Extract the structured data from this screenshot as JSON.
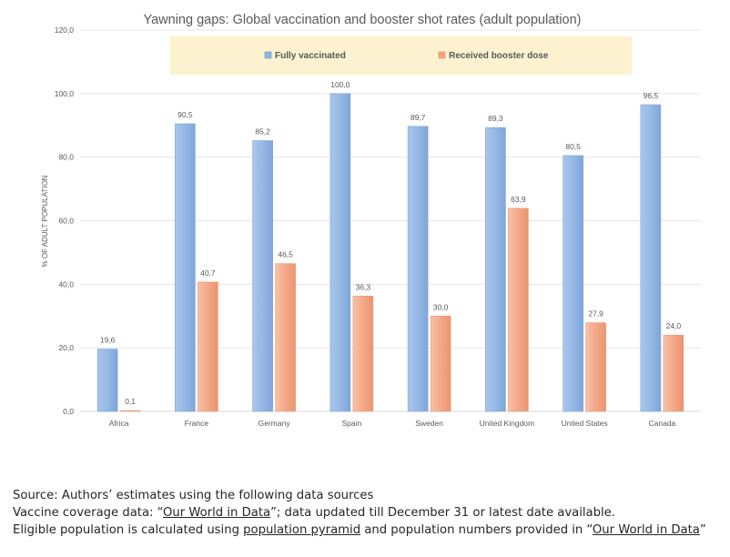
{
  "chart_data": {
    "type": "bar",
    "title": "Yawning gaps: Global vaccination and booster shot rates (adult population)",
    "xlabel": "",
    "ylabel": "% OF ADULT POPULATION",
    "ylim": [
      0,
      120
    ],
    "yticks": [
      0,
      20,
      40,
      60,
      80,
      100,
      120
    ],
    "ytick_labels": [
      "0,0",
      "20,0",
      "40,0",
      "60,0",
      "80,0",
      "100,0",
      "120,0"
    ],
    "grid": true,
    "legend_position": "top",
    "categories": [
      "Africa",
      "France",
      "Germany",
      "Spain",
      "Sweden",
      "United Kingdom",
      "United States",
      "Canada"
    ],
    "series": [
      {
        "name": "Fully vaccinated",
        "color": "#8EB4E3",
        "values": [
          19.6,
          90.5,
          85.2,
          100.0,
          89.7,
          89.3,
          80.5,
          96.5
        ],
        "labels": [
          "19,6",
          "90,5",
          "85,2",
          "100,0",
          "89,7",
          "89,3",
          "80,5",
          "96,5"
        ]
      },
      {
        "name": "Received booster dose",
        "color": "#F4A582",
        "values": [
          0.1,
          40.7,
          46.5,
          36.3,
          30.0,
          63.9,
          27.9,
          24.0
        ],
        "labels": [
          "0,1",
          "40,7",
          "46,5",
          "36,3",
          "30,0",
          "63,9",
          "27,9",
          "24,0"
        ]
      }
    ]
  },
  "colors": {
    "legend_background": "#FCF2D0",
    "gridline": "#E6E6E6",
    "axis_text": "#595959"
  },
  "source": {
    "line1": "Source: Authors’ estimates using the following data sources",
    "line2_prefix": "Vaccine coverage data: “",
    "line2_link": "Our World in Data",
    "line2_suffix": "”; data updated till December 31 or latest date available.",
    "line3_prefix": "Eligible population is calculated using ",
    "line3_link1": "population pyramid",
    "line3_middle": " and population numbers provided in “",
    "line3_link2": "Our World in Data",
    "line3_suffix": "”"
  }
}
